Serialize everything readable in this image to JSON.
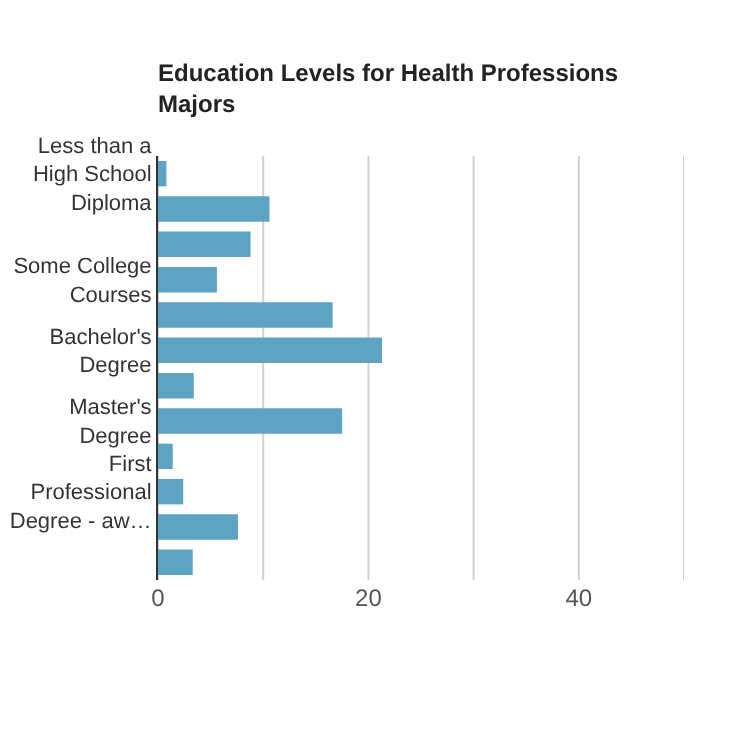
{
  "chart_data": {
    "type": "bar",
    "orientation": "horizontal",
    "title": "Education Levels for Health Professions Majors",
    "categories": [
      "Less than a High School Diploma",
      null,
      null,
      "Some College Courses",
      null,
      "Bachelor's Degree",
      null,
      "Master's Degree",
      null,
      "First Professional Degree - aw…",
      null,
      null
    ],
    "values": [
      0.8,
      10.6,
      8.8,
      5.6,
      16.6,
      21.3,
      3.4,
      17.5,
      1.4,
      2.4,
      7.6,
      3.3
    ],
    "color": "#5ca4c1",
    "xlim": [
      0,
      50
    ],
    "xticks": [
      0,
      {
        "value": 10,
        "label": null
      },
      20,
      {
        "value": 30,
        "label": null
      },
      40,
      {
        "value": 50,
        "label": null
      }
    ],
    "grid": "x"
  }
}
